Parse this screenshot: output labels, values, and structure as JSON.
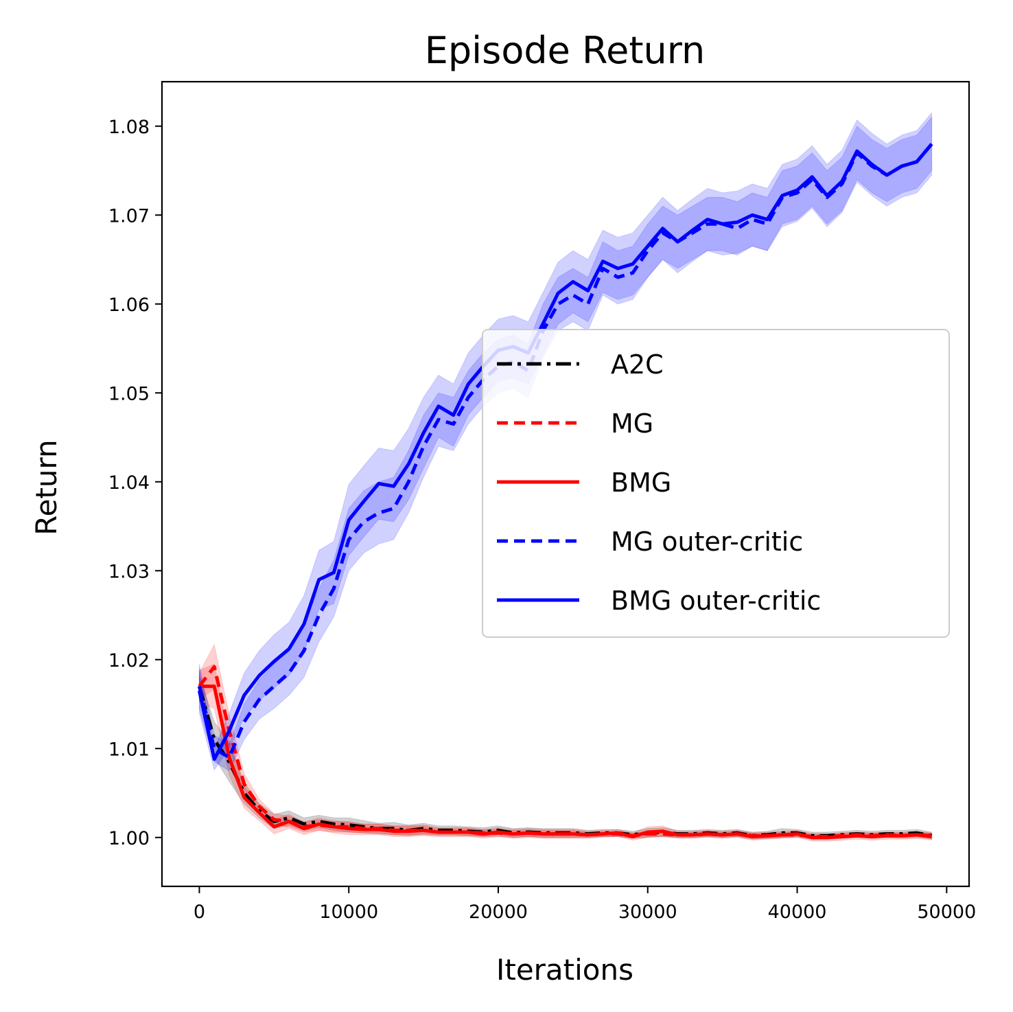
{
  "chart_data": {
    "type": "line",
    "title": "Episode Return",
    "xlabel": "Iterations",
    "ylabel": "Return",
    "xlim": [
      -2500,
      51500
    ],
    "ylim": [
      0.9945,
      1.085
    ],
    "xticks": [
      0,
      10000,
      20000,
      30000,
      40000,
      50000
    ],
    "xtick_labels": [
      "0",
      "10000",
      "20000",
      "30000",
      "40000",
      "50000"
    ],
    "yticks": [
      1.0,
      1.01,
      1.02,
      1.03,
      1.04,
      1.05,
      1.06,
      1.07,
      1.08
    ],
    "ytick_labels": [
      "1.00",
      "1.01",
      "1.02",
      "1.03",
      "1.04",
      "1.05",
      "1.06",
      "1.07",
      "1.08"
    ],
    "grid": false,
    "legend_position": "center-right",
    "x": [
      0,
      1000,
      2000,
      3000,
      4000,
      5000,
      6000,
      7000,
      8000,
      9000,
      10000,
      11000,
      12000,
      13000,
      14000,
      15000,
      16000,
      17000,
      18000,
      19000,
      20000,
      21000,
      22000,
      23000,
      24000,
      25000,
      26000,
      27000,
      28000,
      29000,
      30000,
      31000,
      32000,
      33000,
      34000,
      35000,
      36000,
      37000,
      38000,
      39000,
      40000,
      41000,
      42000,
      43000,
      44000,
      45000,
      46000,
      47000,
      48000,
      49000
    ],
    "series": [
      {
        "name": "A2C",
        "color": "#000000",
        "dash": "dashdot",
        "values": [
          1.017,
          1.011,
          1.0085,
          1.005,
          1.003,
          1.0018,
          1.0022,
          1.0015,
          1.0018,
          1.0015,
          1.0014,
          1.0012,
          1.001,
          1.001,
          1.0008,
          1.001,
          1.0008,
          1.0008,
          1.0007,
          1.0006,
          1.0008,
          1.0005,
          1.0006,
          1.0005,
          1.0005,
          1.0005,
          1.0004,
          1.0005,
          1.0005,
          1.0003,
          1.0005,
          1.0006,
          1.0004,
          1.0004,
          1.0005,
          1.0004,
          1.0005,
          1.0002,
          1.0003,
          1.0005,
          1.0005,
          1.0002,
          1.0002,
          1.0003,
          1.0004,
          1.0003,
          1.0004,
          1.0004,
          1.0005,
          1.0002
        ],
        "band": [
          0.0012,
          0.002,
          0.0022,
          0.0012,
          0.0008,
          0.0008,
          0.0008,
          0.0007,
          0.0007,
          0.0007,
          0.0008,
          0.0007,
          0.0006,
          0.0007,
          0.0006,
          0.0006,
          0.0005,
          0.0005,
          0.0005,
          0.0005,
          0.0005,
          0.0005,
          0.0005,
          0.0005,
          0.0005,
          0.0005,
          0.0004,
          0.0004,
          0.0004,
          0.0004,
          0.0005,
          0.0005,
          0.0004,
          0.0004,
          0.0004,
          0.0004,
          0.0004,
          0.0004,
          0.0004,
          0.0005,
          0.0004,
          0.0004,
          0.0004,
          0.0004,
          0.0004,
          0.0004,
          0.0004,
          0.0004,
          0.0004,
          0.0004
        ]
      },
      {
        "name": "MG",
        "color": "#ff0000",
        "dash": "dashed",
        "values": [
          1.017,
          1.0192,
          1.012,
          1.006,
          1.0035,
          1.002,
          1.0018,
          1.0012,
          1.0014,
          1.0012,
          1.0012,
          1.001,
          1.001,
          1.0008,
          1.0008,
          1.0008,
          1.0006,
          1.0006,
          1.0006,
          1.0005,
          1.0005,
          1.0004,
          1.0005,
          1.0004,
          1.0004,
          1.0004,
          1.0003,
          1.0004,
          1.0004,
          1.0002,
          1.0004,
          1.0004,
          1.0003,
          1.0003,
          1.0004,
          1.0003,
          1.0004,
          1.0002,
          1.0002,
          1.0003,
          1.0003,
          1.0001,
          1.0001,
          1.0002,
          1.0003,
          1.0002,
          1.0003,
          1.0002,
          1.0003,
          1.0002
        ],
        "band": [
          0.0015,
          0.0025,
          0.0018,
          0.0012,
          0.0008,
          0.0007,
          0.0006,
          0.0006,
          0.0006,
          0.0006,
          0.0006,
          0.0005,
          0.0005,
          0.0005,
          0.0005,
          0.0005,
          0.0004,
          0.0004,
          0.0004,
          0.0004,
          0.0004,
          0.0004,
          0.0004,
          0.0004,
          0.0004,
          0.0004,
          0.0003,
          0.0003,
          0.0003,
          0.0003,
          0.0003,
          0.0003,
          0.0003,
          0.0003,
          0.0003,
          0.0003,
          0.0003,
          0.0003,
          0.0003,
          0.0003,
          0.0003,
          0.0003,
          0.0003,
          0.0003,
          0.0003,
          0.0003,
          0.0003,
          0.0003,
          0.0003,
          0.0003
        ]
      },
      {
        "name": "BMG",
        "color": "#ff0000",
        "dash": "solid",
        "values": [
          1.017,
          1.017,
          1.009,
          1.0045,
          1.0028,
          1.0012,
          1.0018,
          1.001,
          1.0015,
          1.0012,
          1.001,
          1.0009,
          1.0009,
          1.0007,
          1.0007,
          1.0008,
          1.0006,
          1.0006,
          1.0006,
          1.0004,
          1.0006,
          1.0004,
          1.0005,
          1.0004,
          1.0004,
          1.0004,
          1.0003,
          1.0004,
          1.0005,
          1.0001,
          1.0006,
          1.0007,
          1.0003,
          1.0003,
          1.0004,
          1.0003,
          1.0004,
          1.0001,
          1.0002,
          1.0003,
          1.0004,
          1.0,
          1.0,
          1.0001,
          1.0002,
          1.0001,
          1.0002,
          1.0002,
          1.0003,
          1.0001
        ],
        "band": [
          0.0018,
          0.0025,
          0.002,
          0.0012,
          0.0009,
          0.0008,
          0.0008,
          0.0007,
          0.0007,
          0.0007,
          0.0007,
          0.0006,
          0.0006,
          0.0006,
          0.0006,
          0.0006,
          0.0005,
          0.0005,
          0.0005,
          0.0005,
          0.0005,
          0.0005,
          0.0005,
          0.0005,
          0.0005,
          0.0005,
          0.0004,
          0.0004,
          0.0004,
          0.0004,
          0.0006,
          0.0006,
          0.0004,
          0.0004,
          0.0004,
          0.0004,
          0.0004,
          0.0004,
          0.0004,
          0.0004,
          0.0004,
          0.0004,
          0.0004,
          0.0004,
          0.0004,
          0.0004,
          0.0004,
          0.0004,
          0.0004,
          0.0004
        ]
      },
      {
        "name": "MG outer-critic",
        "color": "#0000ff",
        "dash": "dashed",
        "values": [
          1.017,
          1.01,
          1.009,
          1.013,
          1.0155,
          1.017,
          1.0185,
          1.021,
          1.025,
          1.028,
          1.0335,
          1.0355,
          1.0365,
          1.037,
          1.04,
          1.044,
          1.047,
          1.0465,
          1.0495,
          1.0515,
          1.053,
          1.0535,
          1.0525,
          1.057,
          1.06,
          1.061,
          1.06,
          1.064,
          1.063,
          1.0635,
          1.066,
          1.068,
          1.067,
          1.068,
          1.069,
          1.069,
          1.0685,
          1.0695,
          1.069,
          1.072,
          1.0725,
          1.074,
          1.072,
          1.0735,
          1.077,
          1.0755,
          1.0745,
          1.0755,
          1.076,
          1.078
        ],
        "band": [
          0.0025,
          0.0015,
          0.0015,
          0.002,
          0.0022,
          0.0025,
          0.0025,
          0.003,
          0.003,
          0.0032,
          0.0035,
          0.0035,
          0.0035,
          0.0035,
          0.0035,
          0.0035,
          0.003,
          0.003,
          0.003,
          0.003,
          0.003,
          0.003,
          0.003,
          0.003,
          0.003,
          0.003,
          0.003,
          0.003,
          0.003,
          0.003,
          0.003,
          0.003,
          0.003,
          0.003,
          0.003,
          0.003,
          0.003,
          0.003,
          0.003,
          0.003,
          0.003,
          0.003,
          0.003,
          0.003,
          0.003,
          0.003,
          0.003,
          0.003,
          0.003,
          0.003
        ]
      },
      {
        "name": "BMG outer-critic",
        "color": "#0000ff",
        "dash": "solid",
        "values": [
          1.0165,
          1.0088,
          1.012,
          1.016,
          1.0182,
          1.0198,
          1.0212,
          1.024,
          1.029,
          1.0298,
          1.0357,
          1.0378,
          1.0398,
          1.0395,
          1.042,
          1.0455,
          1.0485,
          1.0475,
          1.051,
          1.053,
          1.0548,
          1.0552,
          1.0545,
          1.0578,
          1.0612,
          1.0625,
          1.0615,
          1.0648,
          1.064,
          1.0645,
          1.0665,
          1.0685,
          1.067,
          1.0683,
          1.0695,
          1.069,
          1.0692,
          1.07,
          1.0695,
          1.0722,
          1.0728,
          1.0743,
          1.0722,
          1.0738,
          1.0772,
          1.0757,
          1.0745,
          1.0755,
          1.076,
          1.078
        ],
        "band": [
          0.0025,
          0.0012,
          0.002,
          0.0025,
          0.0028,
          0.003,
          0.003,
          0.0032,
          0.0033,
          0.0035,
          0.004,
          0.004,
          0.004,
          0.004,
          0.004,
          0.004,
          0.0035,
          0.0035,
          0.0035,
          0.0035,
          0.0035,
          0.0035,
          0.0035,
          0.0035,
          0.0035,
          0.0035,
          0.0035,
          0.0035,
          0.0035,
          0.0035,
          0.0035,
          0.0035,
          0.0035,
          0.0035,
          0.0035,
          0.0035,
          0.0035,
          0.0035,
          0.0035,
          0.0035,
          0.0035,
          0.0035,
          0.0035,
          0.0035,
          0.0035,
          0.0035,
          0.0035,
          0.0035,
          0.0035,
          0.0035
        ]
      }
    ]
  }
}
